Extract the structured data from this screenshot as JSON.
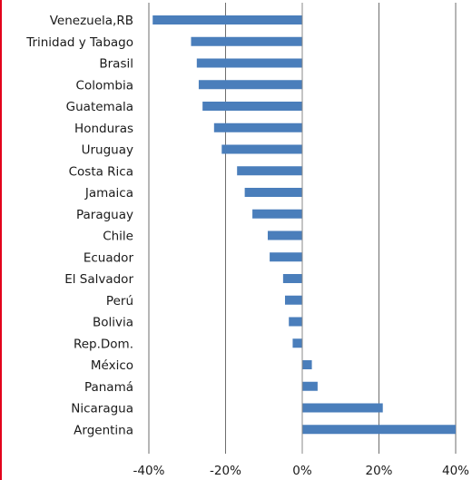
{
  "chart_data": {
    "type": "bar",
    "orientation": "horizontal",
    "categories": [
      "Venezuela,RB",
      "Trinidad y Tabago",
      "Brasil",
      "Colombia",
      "Guatemala",
      "Honduras",
      "Uruguay",
      "Costa Rica",
      "Jamaica",
      "Paraguay",
      "Chile",
      "Ecuador",
      "El Salvador",
      "Perú",
      "Bolivia",
      "Rep.Dom.",
      "México",
      "Panamá",
      "Nicaragua",
      "Argentina"
    ],
    "values": [
      -39,
      -29,
      -27.5,
      -27,
      -26,
      -23,
      -21,
      -17,
      -15,
      -13,
      -9,
      -8.5,
      -5,
      -4.5,
      -3.5,
      -2.5,
      2.5,
      4,
      21,
      40
    ],
    "xlim": [
      -40,
      40
    ],
    "xticks": [
      -40,
      -20,
      0,
      20,
      40
    ],
    "xtick_labels": [
      "-40%",
      "-20%",
      "0%",
      "20%",
      "40%"
    ],
    "bar_color": "#4a7ebb",
    "grid": true,
    "title": "",
    "xlabel": "",
    "ylabel": ""
  }
}
